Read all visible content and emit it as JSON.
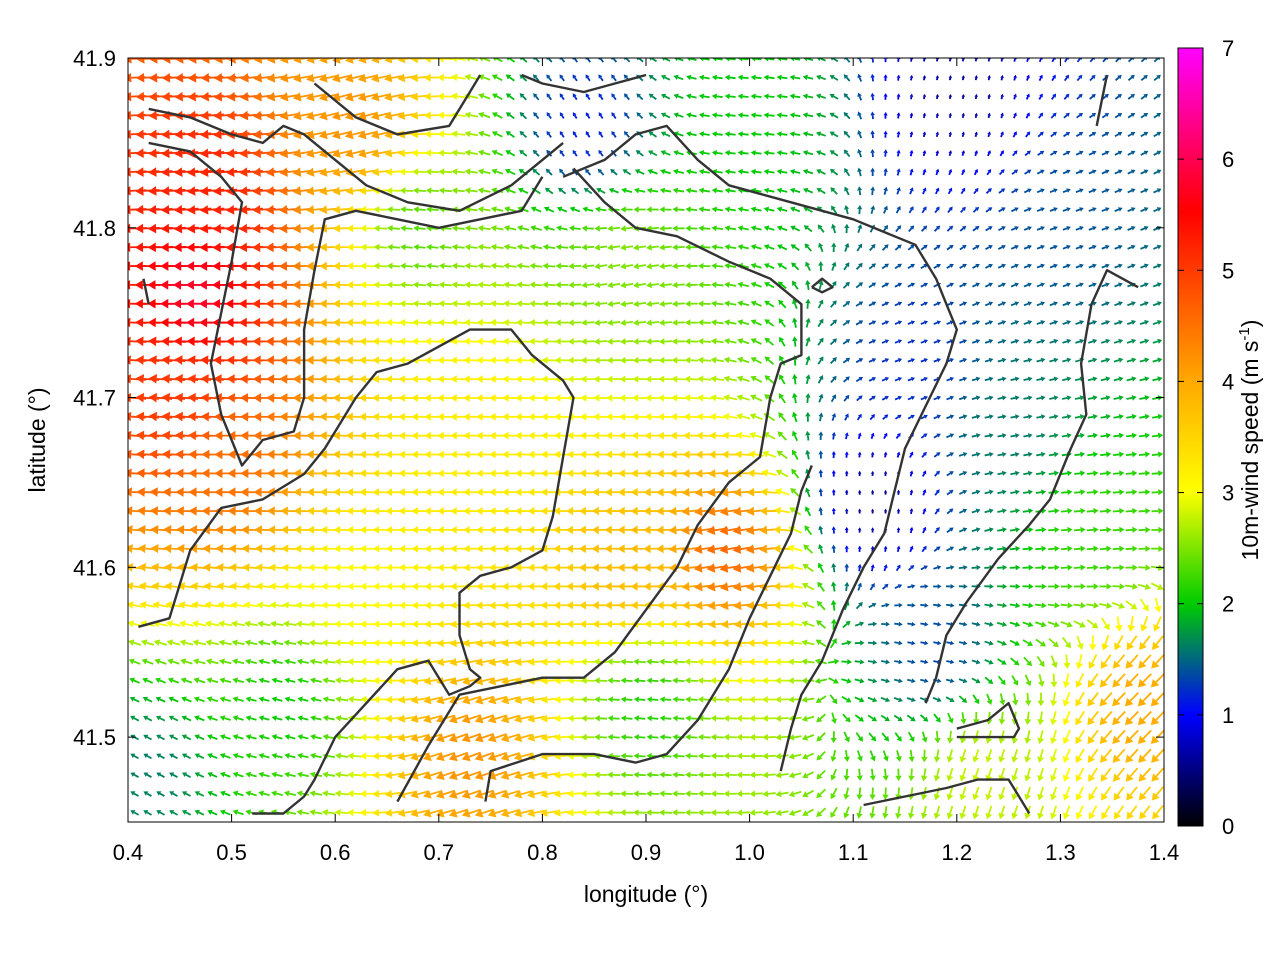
{
  "chart_data": {
    "type": "vector-field",
    "xlabel": "longitude (°)",
    "ylabel": "latitude (°)",
    "xlim": [
      0.4,
      1.4
    ],
    "ylim": [
      41.45,
      41.9
    ],
    "xticks": [
      "0.4",
      "0.5",
      "0.6",
      "0.7",
      "0.8",
      "0.9",
      "1.0",
      "1.1",
      "1.2",
      "1.3",
      "1.4"
    ],
    "yticks": [
      "41.5",
      "41.6",
      "41.7",
      "41.8",
      "41.9"
    ],
    "colorbar": {
      "label_main": "10m-wind speed (m s",
      "label_sup": "-1",
      "label_end": ")",
      "range": [
        0,
        7
      ],
      "ticks": [
        "0",
        "1",
        "2",
        "3",
        "4",
        "5",
        "6",
        "7"
      ],
      "palette": [
        "#000000",
        "#0000ff",
        "#00cc00",
        "#ffff00",
        "#ff0000",
        "#ff00ff"
      ]
    },
    "grid_spacing_deg": [
      0.0125,
      0.0111
    ],
    "wind_regions": [
      {
        "lon": 0.47,
        "lat": 41.76,
        "speed": 5.8,
        "dir_deg": 180
      },
      {
        "lon": 0.48,
        "lat": 41.82,
        "speed": 5.2,
        "dir_deg": 185
      },
      {
        "lon": 0.45,
        "lat": 41.7,
        "speed": 5.0,
        "dir_deg": 175
      },
      {
        "lon": 0.5,
        "lat": 41.66,
        "speed": 4.5,
        "dir_deg": 180
      },
      {
        "lon": 0.62,
        "lat": 41.86,
        "speed": 4.2,
        "dir_deg": 195
      },
      {
        "lon": 0.98,
        "lat": 41.61,
        "speed": 4.6,
        "dir_deg": 190
      },
      {
        "lon": 0.73,
        "lat": 41.49,
        "speed": 4.2,
        "dir_deg": 200
      },
      {
        "lon": 0.88,
        "lat": 41.6,
        "speed": 3.8,
        "dir_deg": 180
      },
      {
        "lon": 0.72,
        "lat": 41.68,
        "speed": 3.2,
        "dir_deg": 180
      },
      {
        "lon": 0.62,
        "lat": 41.58,
        "speed": 3.0,
        "dir_deg": 180
      },
      {
        "lon": 0.88,
        "lat": 41.78,
        "speed": 2.5,
        "dir_deg": 190
      },
      {
        "lon": 0.68,
        "lat": 41.8,
        "speed": 2.3,
        "dir_deg": 175
      },
      {
        "lon": 0.55,
        "lat": 41.52,
        "speed": 2.0,
        "dir_deg": 165
      },
      {
        "lon": 0.9,
        "lat": 41.52,
        "speed": 2.1,
        "dir_deg": 175
      },
      {
        "lon": 1.38,
        "lat": 41.52,
        "speed": 4.0,
        "dir_deg": 225
      },
      {
        "lon": 1.22,
        "lat": 41.48,
        "speed": 2.8,
        "dir_deg": 250
      },
      {
        "lon": 1.0,
        "lat": 41.87,
        "speed": 2.0,
        "dir_deg": 175
      },
      {
        "lon": 1.16,
        "lat": 41.72,
        "speed": 1.2,
        "dir_deg": 20
      },
      {
        "lon": 1.25,
        "lat": 41.68,
        "speed": 1.6,
        "dir_deg": 10
      },
      {
        "lon": 1.18,
        "lat": 41.55,
        "speed": 1.3,
        "dir_deg": 350
      },
      {
        "lon": 1.2,
        "lat": 41.88,
        "speed": 0.6,
        "dir_deg": 80
      },
      {
        "lon": 1.3,
        "lat": 41.8,
        "speed": 1.4,
        "dir_deg": 20
      },
      {
        "lon": 1.33,
        "lat": 41.62,
        "speed": 2.2,
        "dir_deg": 5
      },
      {
        "lon": 1.12,
        "lat": 41.64,
        "speed": 0.5,
        "dir_deg": 90
      },
      {
        "lon": 0.84,
        "lat": 41.86,
        "speed": 1.1,
        "dir_deg": 120
      },
      {
        "lon": 0.42,
        "lat": 41.48,
        "speed": 1.6,
        "dir_deg": 150
      }
    ],
    "contours": [
      [
        [
          0.42,
          41.87
        ],
        [
          0.46,
          41.865
        ],
        [
          0.5,
          41.855
        ],
        [
          0.53,
          41.85
        ],
        [
          0.55,
          41.86
        ],
        [
          0.57,
          41.855
        ],
        [
          0.6,
          41.84
        ],
        [
          0.63,
          41.825
        ],
        [
          0.67,
          41.815
        ],
        [
          0.72,
          41.81
        ],
        [
          0.77,
          41.825
        ],
        [
          0.8,
          41.84
        ],
        [
          0.82,
          41.85
        ]
      ],
      [
        [
          0.42,
          41.85
        ],
        [
          0.46,
          41.845
        ],
        [
          0.49,
          41.83
        ],
        [
          0.51,
          41.815
        ],
        [
          0.5,
          41.78
        ],
        [
          0.49,
          41.75
        ],
        [
          0.48,
          41.72
        ],
        [
          0.49,
          41.69
        ],
        [
          0.51,
          41.66
        ],
        [
          0.53,
          41.675
        ],
        [
          0.56,
          41.68
        ],
        [
          0.57,
          41.7
        ],
        [
          0.57,
          41.74
        ],
        [
          0.58,
          41.775
        ],
        [
          0.59,
          41.805
        ],
        [
          0.62,
          41.81
        ],
        [
          0.66,
          41.805
        ],
        [
          0.7,
          41.8
        ],
        [
          0.74,
          41.805
        ],
        [
          0.78,
          41.81
        ],
        [
          0.8,
          41.83
        ]
      ],
      [
        [
          0.415,
          41.77
        ],
        [
          0.42,
          41.755
        ]
      ],
      [
        [
          0.41,
          41.565
        ],
        [
          0.44,
          41.57
        ],
        [
          0.46,
          41.61
        ],
        [
          0.49,
          41.635
        ],
        [
          0.53,
          41.64
        ],
        [
          0.57,
          41.655
        ],
        [
          0.59,
          41.67
        ],
        [
          0.62,
          41.7
        ],
        [
          0.64,
          41.715
        ],
        [
          0.67,
          41.72
        ],
        [
          0.7,
          41.73
        ],
        [
          0.73,
          41.74
        ],
        [
          0.76,
          41.74
        ],
        [
          0.77,
          41.74
        ],
        [
          0.79,
          41.725
        ],
        [
          0.82,
          41.71
        ],
        [
          0.83,
          41.7
        ],
        [
          0.82,
          41.665
        ],
        [
          0.81,
          41.63
        ],
        [
          0.8,
          41.61
        ],
        [
          0.77,
          41.6
        ],
        [
          0.74,
          41.595
        ],
        [
          0.72,
          41.585
        ],
        [
          0.72,
          41.56
        ],
        [
          0.73,
          41.54
        ],
        [
          0.74,
          41.535
        ],
        [
          0.73,
          41.53
        ],
        [
          0.71,
          41.525
        ],
        [
          0.69,
          41.545
        ],
        [
          0.66,
          41.54
        ],
        [
          0.63,
          41.52
        ],
        [
          0.6,
          41.5
        ],
        [
          0.58,
          41.475
        ],
        [
          0.57,
          41.465
        ],
        [
          0.55,
          41.455
        ],
        [
          0.52,
          41.455
        ]
      ],
      [
        [
          0.66,
          41.462
        ],
        [
          0.69,
          41.495
        ],
        [
          0.72,
          41.525
        ],
        [
          0.76,
          41.53
        ],
        [
          0.8,
          41.535
        ],
        [
          0.84,
          41.535
        ],
        [
          0.87,
          41.55
        ],
        [
          0.9,
          41.575
        ],
        [
          0.93,
          41.6
        ],
        [
          0.95,
          41.625
        ],
        [
          0.98,
          41.65
        ],
        [
          1.01,
          41.665
        ],
        [
          1.02,
          41.7
        ],
        [
          1.03,
          41.72
        ],
        [
          1.05,
          41.725
        ],
        [
          1.05,
          41.755
        ],
        [
          1.02,
          41.77
        ],
        [
          0.98,
          41.78
        ],
        [
          0.93,
          41.795
        ],
        [
          0.89,
          41.8
        ],
        [
          0.86,
          41.815
        ],
        [
          0.83,
          41.835
        ]
      ],
      [
        [
          0.745,
          41.462
        ],
        [
          0.75,
          41.48
        ],
        [
          0.8,
          41.49
        ],
        [
          0.85,
          41.49
        ],
        [
          0.89,
          41.485
        ],
        [
          0.92,
          41.49
        ],
        [
          0.95,
          41.51
        ],
        [
          0.98,
          41.54
        ],
        [
          1.0,
          41.57
        ],
        [
          1.02,
          41.595
        ],
        [
          1.04,
          41.62
        ],
        [
          1.05,
          41.645
        ],
        [
          1.06,
          41.66
        ]
      ],
      [
        [
          0.82,
          41.83
        ],
        [
          0.86,
          41.84
        ],
        [
          0.89,
          41.855
        ],
        [
          0.92,
          41.86
        ],
        [
          0.95,
          41.84
        ],
        [
          0.98,
          41.825
        ],
        [
          1.01,
          41.82
        ],
        [
          1.04,
          41.815
        ],
        [
          1.07,
          41.81
        ],
        [
          1.1,
          41.805
        ],
        [
          1.14,
          41.795
        ],
        [
          1.16,
          41.79
        ],
        [
          1.18,
          41.77
        ],
        [
          1.19,
          41.755
        ],
        [
          1.2,
          41.74
        ],
        [
          1.19,
          41.72
        ],
        [
          1.17,
          41.695
        ],
        [
          1.15,
          41.67
        ],
        [
          1.14,
          41.645
        ],
        [
          1.13,
          41.62
        ],
        [
          1.11,
          41.6
        ],
        [
          1.09,
          41.575
        ],
        [
          1.07,
          41.545
        ],
        [
          1.05,
          41.525
        ],
        [
          1.04,
          41.505
        ],
        [
          1.03,
          41.48
        ]
      ],
      [
        [
          1.06,
          41.765
        ],
        [
          1.07,
          41.77
        ],
        [
          1.08,
          41.765
        ],
        [
          1.07,
          41.762
        ],
        [
          1.06,
          41.765
        ]
      ],
      [
        [
          1.335,
          41.86
        ],
        [
          1.34,
          41.875
        ],
        [
          1.345,
          41.89
        ]
      ],
      [
        [
          1.375,
          41.765
        ],
        [
          1.345,
          41.775
        ],
        [
          1.33,
          41.755
        ],
        [
          1.32,
          41.72
        ],
        [
          1.325,
          41.69
        ],
        [
          1.31,
          41.67
        ],
        [
          1.29,
          41.64
        ],
        [
          1.27,
          41.625
        ],
        [
          1.24,
          41.605
        ],
        [
          1.21,
          41.58
        ],
        [
          1.19,
          41.56
        ],
        [
          1.18,
          41.535
        ],
        [
          1.17,
          41.52
        ]
      ],
      [
        [
          1.2,
          41.505
        ],
        [
          1.23,
          41.51
        ],
        [
          1.25,
          41.52
        ],
        [
          1.26,
          41.505
        ],
        [
          1.255,
          41.5
        ],
        [
          1.24,
          41.5
        ],
        [
          1.2,
          41.5
        ]
      ],
      [
        [
          1.11,
          41.46
        ],
        [
          1.15,
          41.465
        ],
        [
          1.19,
          41.47
        ],
        [
          1.22,
          41.475
        ],
        [
          1.25,
          41.475
        ],
        [
          1.26,
          41.465
        ],
        [
          1.27,
          41.455
        ]
      ],
      [
        [
          0.58,
          41.885
        ],
        [
          0.62,
          41.865
        ],
        [
          0.66,
          41.855
        ],
        [
          0.71,
          41.86
        ],
        [
          0.73,
          41.88
        ],
        [
          0.74,
          41.89
        ]
      ],
      [
        [
          0.78,
          41.89
        ],
        [
          0.8,
          41.885
        ],
        [
          0.84,
          41.88
        ],
        [
          0.87,
          41.885
        ],
        [
          0.9,
          41.89
        ]
      ]
    ]
  }
}
